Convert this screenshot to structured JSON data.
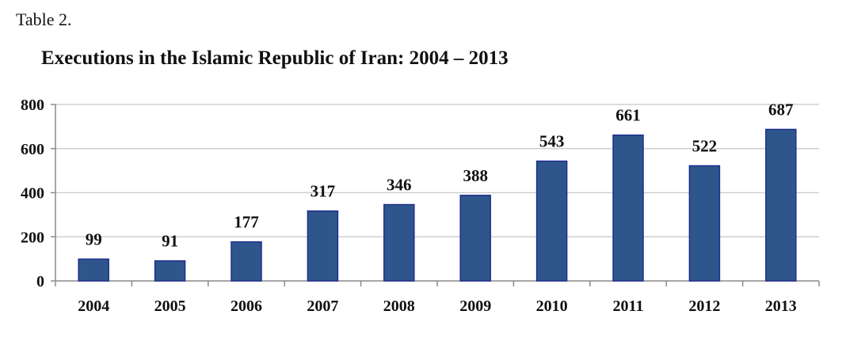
{
  "caption": "Table 2.",
  "chart_data": {
    "type": "bar",
    "title": "Executions in the Islamic Republic of Iran: 2004 – 2013",
    "categories": [
      "2004",
      "2005",
      "2006",
      "2007",
      "2008",
      "2009",
      "2010",
      "2011",
      "2012",
      "2013"
    ],
    "values": [
      99,
      91,
      177,
      317,
      346,
      388,
      543,
      661,
      522,
      687
    ],
    "data_labels": [
      "99",
      "91",
      "177",
      "317",
      "346",
      "388",
      "543",
      "661",
      "522",
      "687"
    ],
    "ylim": [
      0,
      800
    ],
    "yticks": [
      "0",
      "200",
      "400",
      "600",
      "800"
    ],
    "grid": true,
    "legend": "none",
    "colors": {
      "bar_fill": "#2e568c",
      "bar_stroke": "#1f2f8f",
      "grid": "#cfcfcf",
      "axis": "#8a8a8a"
    }
  }
}
